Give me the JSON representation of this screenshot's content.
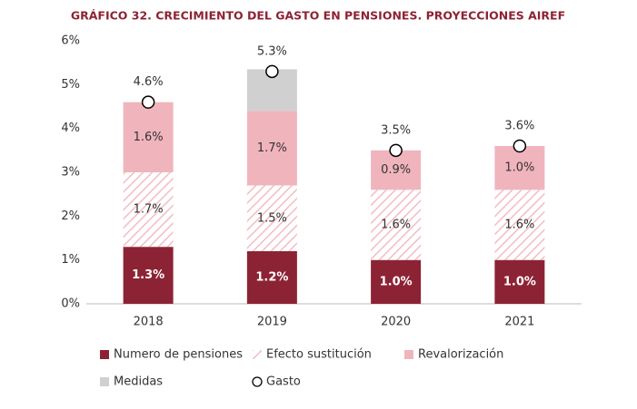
{
  "chart_data": {
    "type": "bar",
    "stacked": true,
    "title": "GRÁFICO 32.  CRECIMIENTO DEL GASTO EN PENSIONES. PROYECCIONES AIREF",
    "categories": [
      "2018",
      "2019",
      "2020",
      "2021"
    ],
    "series": [
      {
        "name": "Numero de pensiones",
        "color": "#8c2334",
        "values": [
          1.3,
          1.2,
          1.0,
          1.0
        ],
        "value_labels": [
          "1.3%",
          "1.2%",
          "1.0%",
          "1.0%"
        ]
      },
      {
        "name": "Efecto sustitución",
        "color": "#f3bcc4",
        "hatch": true,
        "values": [
          1.7,
          1.5,
          1.6,
          1.6
        ],
        "value_labels": [
          "1.7%",
          "1.5%",
          "1.6%",
          "1.6%"
        ]
      },
      {
        "name": "Revalorización",
        "color": "#f0b4bd",
        "values": [
          1.6,
          1.7,
          0.9,
          1.0
        ],
        "value_labels": [
          "1.6%",
          "1.7%",
          "0.9%",
          "1.0%"
        ]
      },
      {
        "name": "Medidas",
        "color": "#d0d0d0",
        "values": [
          0,
          0.95,
          0,
          0
        ]
      },
      {
        "name": "Gasto",
        "type": "scatter",
        "color": "#ffffff",
        "values": [
          4.6,
          5.3,
          3.5,
          3.6
        ],
        "value_labels": [
          "4.6%",
          "5.3%",
          "3.5%",
          "3.6%"
        ]
      }
    ],
    "ylim": [
      0,
      6
    ],
    "yticks": [
      {
        "value": 0,
        "label": "0%"
      },
      {
        "value": 1,
        "label": "1%"
      },
      {
        "value": 2,
        "label": "2%"
      },
      {
        "value": 3,
        "label": "3%"
      },
      {
        "value": 4,
        "label": "4%"
      },
      {
        "value": 5,
        "label": "5%"
      },
      {
        "value": 6,
        "label": "6%"
      }
    ],
    "title_color": "#8c2334"
  }
}
